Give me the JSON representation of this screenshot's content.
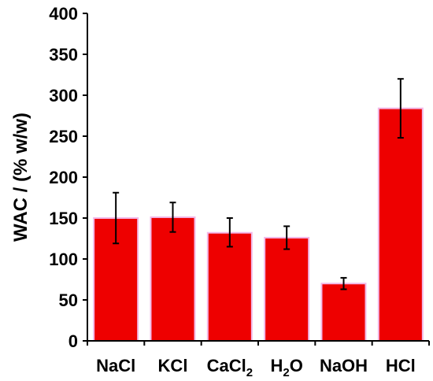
{
  "chart_data": {
    "type": "bar",
    "title": "",
    "xlabel": "",
    "ylabel": "WAC / (% w/w)",
    "ylim": [
      0,
      400
    ],
    "yticks": [
      0,
      50,
      100,
      150,
      200,
      250,
      300,
      350,
      400
    ],
    "grid": false,
    "legend": "none",
    "categories": [
      {
        "main": "NaCl",
        "sub": "",
        "tail": ""
      },
      {
        "main": "KCl",
        "sub": "",
        "tail": ""
      },
      {
        "main": "CaCl",
        "sub": "2",
        "tail": ""
      },
      {
        "main": "H",
        "sub": "2",
        "tail": "O"
      },
      {
        "main": "NaOH",
        "sub": "",
        "tail": ""
      },
      {
        "main": "HCl",
        "sub": "",
        "tail": ""
      }
    ],
    "series": [
      {
        "values": [
          150,
          151,
          132,
          126,
          70,
          284
        ],
        "error_plus": [
          31,
          18,
          18,
          14,
          7,
          36
        ],
        "error_minus": [
          31,
          18,
          17,
          14,
          7,
          36
        ],
        "color": "#ee0000",
        "edge_color": "#f2b8e8"
      }
    ]
  }
}
